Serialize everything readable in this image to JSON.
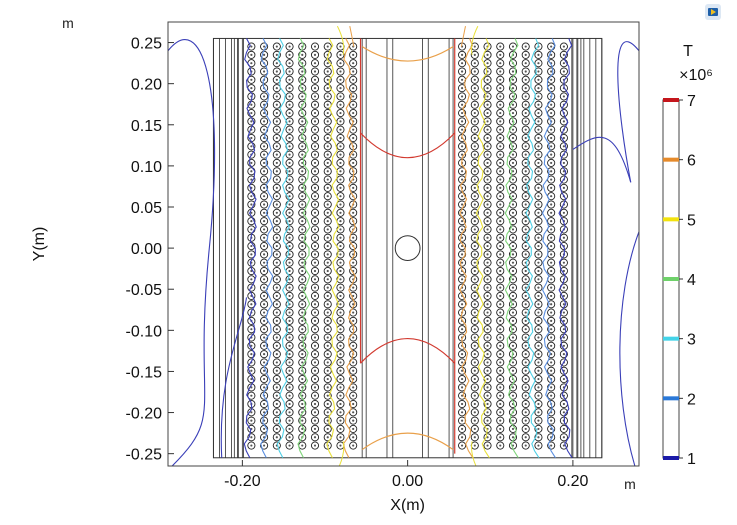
{
  "chart_data": {
    "type": "contour",
    "units": {
      "x_corner": "m",
      "y_corner": "m"
    },
    "xlabel": "X(m)",
    "ylabel": "Y(m)",
    "xlim": [
      -0.29,
      0.28
    ],
    "ylim": [
      -0.265,
      0.275
    ],
    "x_ticks": [
      "-0.20",
      "0.00",
      "0.20"
    ],
    "x_tick_values": [
      -0.2,
      0.0,
      0.2
    ],
    "y_ticks": [
      "0.25",
      "0.20",
      "0.15",
      "0.10",
      "0.05",
      "0.00",
      "-0.05",
      "-0.10",
      "-0.15",
      "-0.20",
      "-0.25"
    ],
    "y_tick_values": [
      0.25,
      0.2,
      0.15,
      0.1,
      0.05,
      0.0,
      -0.05,
      -0.1,
      -0.15,
      -0.2,
      -0.25
    ],
    "colorbar": {
      "title": "T",
      "multiplier": "×10⁶",
      "tick_labels": [
        "7",
        "6",
        "5",
        "4",
        "3",
        "2",
        "1"
      ],
      "tick_values": [
        7,
        6,
        5,
        4,
        3,
        2,
        1
      ],
      "colors": [
        "#c4161c",
        "#e58a2b",
        "#f2e20e",
        "#6fd16a",
        "#43d3e8",
        "#2a78d8",
        "#1a1aa8"
      ]
    },
    "contour_levels": [
      {
        "value": 1,
        "color": "#3a3fb8"
      },
      {
        "value": 2,
        "color": "#5a8ee0"
      },
      {
        "value": 3,
        "color": "#4fd0e6"
      },
      {
        "value": 4,
        "color": "#7fd57a"
      },
      {
        "value": 5,
        "color": "#e9e13a"
      },
      {
        "value": 6,
        "color": "#e9a04a"
      },
      {
        "value": 7,
        "color": "#d23a30"
      }
    ],
    "geometry": {
      "outer_frame_x": [
        -0.235,
        0.235
      ],
      "outer_frame_y": [
        -0.255,
        0.255
      ],
      "left_coil_x": [
        -0.2,
        -0.055
      ],
      "right_coil_x": [
        0.055,
        0.2
      ],
      "center_bore": {
        "x": 0.0,
        "y": 0.0,
        "r": 0.015
      }
    }
  }
}
